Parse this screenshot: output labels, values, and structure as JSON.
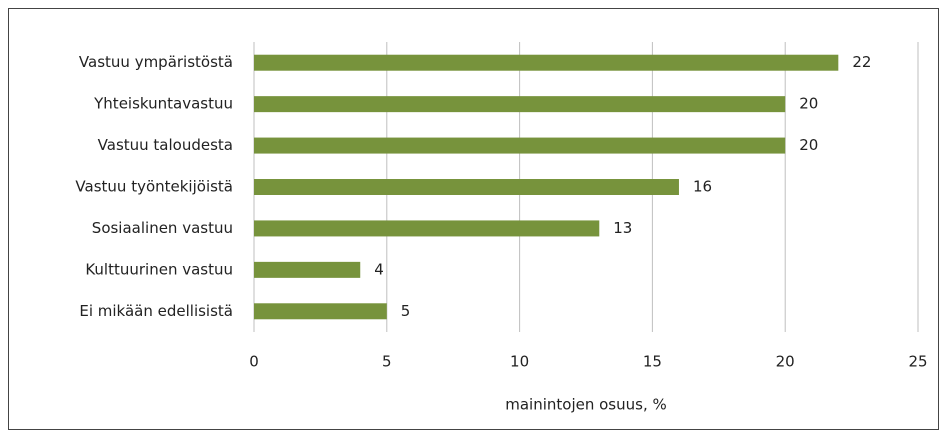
{
  "chart_data": {
    "type": "barh",
    "categories": [
      "Vastuu ympäristöstä",
      "Yhteiskuntavastuu",
      "Vastuu taloudesta",
      "Vastuu työntekijöistä",
      "Sosiaalinen vastuu",
      "Kulttuurinen vastuu",
      "Ei mikään edellisistä"
    ],
    "values": [
      22,
      20,
      20,
      16,
      13,
      4,
      5
    ],
    "color": "#77933c",
    "xlabel": "mainintojen osuus, %",
    "xlim": [
      0,
      25
    ],
    "xticks": [
      0,
      5,
      10,
      15,
      20,
      25
    ],
    "grid": true,
    "data_labels": true
  }
}
